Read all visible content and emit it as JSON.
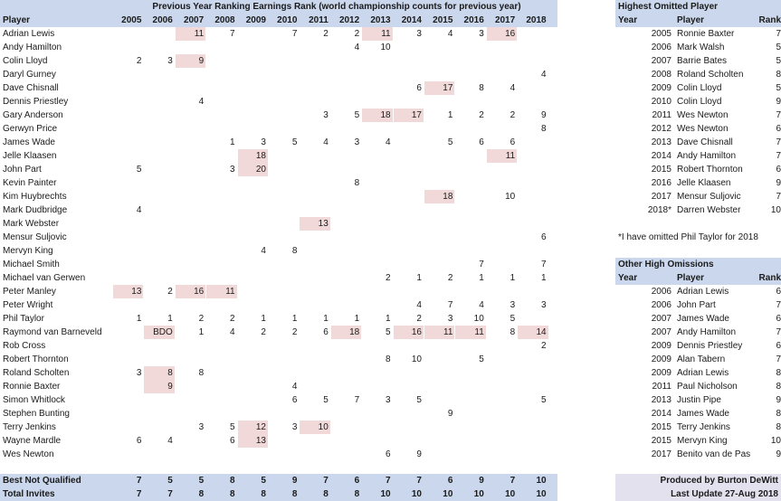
{
  "title": "Previous Year Ranking Earnings Rank (world championship counts for previous year)",
  "player_header": "Player",
  "years": [
    "2005",
    "2006",
    "2007",
    "2008",
    "2009",
    "2010",
    "2011",
    "2012",
    "2013",
    "2014",
    "2015",
    "2016",
    "2017",
    "2018"
  ],
  "players": [
    {
      "name": "Adrian Lewis",
      "ranks": [
        "",
        "",
        "11",
        "7",
        "",
        "7",
        "2",
        "2",
        "11",
        "3",
        "4",
        "3",
        "16",
        ""
      ],
      "highlight": [
        2,
        8,
        12
      ]
    },
    {
      "name": "Andy Hamilton",
      "ranks": [
        "",
        "",
        "",
        "",
        "",
        "",
        "",
        "4",
        "10",
        "",
        "",
        "",
        "",
        ""
      ],
      "highlight": []
    },
    {
      "name": "Colin Lloyd",
      "ranks": [
        "2",
        "3",
        "9",
        "",
        "",
        "",
        "",
        "",
        "",
        "",
        "",
        "",
        "",
        ""
      ],
      "highlight": [
        2
      ]
    },
    {
      "name": "Daryl Gurney",
      "ranks": [
        "",
        "",
        "",
        "",
        "",
        "",
        "",
        "",
        "",
        "",
        "",
        "",
        "",
        "4"
      ],
      "highlight": []
    },
    {
      "name": "Dave Chisnall",
      "ranks": [
        "",
        "",
        "",
        "",
        "",
        "",
        "",
        "",
        "",
        "6",
        "17",
        "8",
        "4",
        ""
      ],
      "highlight": [
        10
      ]
    },
    {
      "name": "Dennis Priestley",
      "ranks": [
        "",
        "",
        "4",
        "",
        "",
        "",
        "",
        "",
        "",
        "",
        "",
        "",
        "",
        ""
      ],
      "highlight": []
    },
    {
      "name": "Gary Anderson",
      "ranks": [
        "",
        "",
        "",
        "",
        "",
        "",
        "3",
        "5",
        "18",
        "17",
        "1",
        "2",
        "2",
        "9"
      ],
      "highlight": [
        8,
        9
      ]
    },
    {
      "name": "Gerwyn Price",
      "ranks": [
        "",
        "",
        "",
        "",
        "",
        "",
        "",
        "",
        "",
        "",
        "",
        "",
        "",
        "8"
      ],
      "highlight": []
    },
    {
      "name": "James Wade",
      "ranks": [
        "",
        "",
        "",
        "1",
        "3",
        "5",
        "4",
        "3",
        "4",
        "",
        "5",
        "6",
        "6",
        ""
      ],
      "highlight": []
    },
    {
      "name": "Jelle Klaasen",
      "ranks": [
        "",
        "",
        "",
        "",
        "18",
        "",
        "",
        "",
        "",
        "",
        "",
        "",
        "11",
        ""
      ],
      "highlight": [
        4,
        12
      ]
    },
    {
      "name": "John Part",
      "ranks": [
        "5",
        "",
        "",
        "3",
        "20",
        "",
        "",
        "",
        "",
        "",
        "",
        "",
        "",
        ""
      ],
      "highlight": [
        4
      ]
    },
    {
      "name": "Kevin Painter",
      "ranks": [
        "",
        "",
        "",
        "",
        "",
        "",
        "",
        "8",
        "",
        "",
        "",
        "",
        "",
        ""
      ],
      "highlight": []
    },
    {
      "name": "Kim Huybrechts",
      "ranks": [
        "",
        "",
        "",
        "",
        "",
        "",
        "",
        "",
        "",
        "",
        "18",
        "",
        "10",
        ""
      ],
      "highlight": [
        10
      ]
    },
    {
      "name": "Mark Dudbridge",
      "ranks": [
        "4",
        "",
        "",
        "",
        "",
        "",
        "",
        "",
        "",
        "",
        "",
        "",
        "",
        ""
      ],
      "highlight": []
    },
    {
      "name": "Mark Webster",
      "ranks": [
        "",
        "",
        "",
        "",
        "",
        "",
        "13",
        "",
        "",
        "",
        "",
        "",
        "",
        ""
      ],
      "highlight": [
        6
      ]
    },
    {
      "name": "Mensur Suljovic",
      "ranks": [
        "",
        "",
        "",
        "",
        "",
        "",
        "",
        "",
        "",
        "",
        "",
        "",
        "",
        "6"
      ],
      "highlight": []
    },
    {
      "name": "Mervyn King",
      "ranks": [
        "",
        "",
        "",
        "",
        "4",
        "8",
        "",
        "",
        "",
        "",
        "",
        "",
        "",
        ""
      ],
      "highlight": []
    },
    {
      "name": "Michael Smith",
      "ranks": [
        "",
        "",
        "",
        "",
        "",
        "",
        "",
        "",
        "",
        "",
        "",
        "7",
        "",
        "7"
      ],
      "highlight": []
    },
    {
      "name": "Michael van Gerwen",
      "ranks": [
        "",
        "",
        "",
        "",
        "",
        "",
        "",
        "",
        "2",
        "1",
        "2",
        "1",
        "1",
        "1"
      ],
      "highlight": []
    },
    {
      "name": "Peter Manley",
      "ranks": [
        "13",
        "2",
        "16",
        "11",
        "",
        "",
        "",
        "",
        "",
        "",
        "",
        "",
        "",
        ""
      ],
      "highlight": [
        0,
        2,
        3
      ]
    },
    {
      "name": "Peter Wright",
      "ranks": [
        "",
        "",
        "",
        "",
        "",
        "",
        "",
        "",
        "",
        "4",
        "7",
        "4",
        "3",
        "3"
      ],
      "highlight": []
    },
    {
      "name": "Phil Taylor",
      "ranks": [
        "1",
        "1",
        "2",
        "2",
        "1",
        "1",
        "1",
        "1",
        "1",
        "2",
        "3",
        "10",
        "5",
        ""
      ],
      "highlight": []
    },
    {
      "name": "Raymond van Barneveld",
      "ranks": [
        "",
        "BDO",
        "1",
        "4",
        "2",
        "2",
        "6",
        "18",
        "5",
        "16",
        "11",
        "11",
        "8",
        "14"
      ],
      "highlight": [
        1,
        7,
        9,
        10,
        11,
        13
      ]
    },
    {
      "name": "Rob Cross",
      "ranks": [
        "",
        "",
        "",
        "",
        "",
        "",
        "",
        "",
        "",
        "",
        "",
        "",
        "",
        "2"
      ],
      "highlight": []
    },
    {
      "name": "Robert Thornton",
      "ranks": [
        "",
        "",
        "",
        "",
        "",
        "",
        "",
        "",
        "8",
        "10",
        "",
        "5",
        "",
        ""
      ],
      "highlight": []
    },
    {
      "name": "Roland Scholten",
      "ranks": [
        "3",
        "8",
        "8",
        "",
        "",
        "",
        "",
        "",
        "",
        "",
        "",
        "",
        "",
        ""
      ],
      "highlight": [
        1
      ]
    },
    {
      "name": "Ronnie Baxter",
      "ranks": [
        "",
        "9",
        "",
        "",
        "",
        "4",
        "",
        "",
        "",
        "",
        "",
        "",
        "",
        ""
      ],
      "highlight": [
        1
      ]
    },
    {
      "name": "Simon Whitlock",
      "ranks": [
        "",
        "",
        "",
        "",
        "",
        "6",
        "5",
        "7",
        "3",
        "5",
        "",
        "",
        "",
        "5"
      ],
      "highlight": []
    },
    {
      "name": "Stephen Bunting",
      "ranks": [
        "",
        "",
        "",
        "",
        "",
        "",
        "",
        "",
        "",
        "",
        "9",
        "",
        "",
        ""
      ],
      "highlight": []
    },
    {
      "name": "Terry Jenkins",
      "ranks": [
        "",
        "",
        "3",
        "5",
        "12",
        "3",
        "10",
        "",
        "",
        "",
        "",
        "",
        "",
        ""
      ],
      "highlight": [
        4,
        6
      ]
    },
    {
      "name": "Wayne Mardle",
      "ranks": [
        "6",
        "4",
        "",
        "6",
        "13",
        "",
        "",
        "",
        "",
        "",
        "",
        "",
        "",
        ""
      ],
      "highlight": [
        4
      ]
    },
    {
      "name": "Wes Newton",
      "ranks": [
        "",
        "",
        "",
        "",
        "",
        "",
        "",
        "",
        "6",
        "9",
        "",
        "",
        "",
        ""
      ],
      "highlight": []
    }
  ],
  "footer_rows": [
    {
      "label": "Best Not Qualified",
      "values": [
        "7",
        "5",
        "5",
        "8",
        "5",
        "9",
        "7",
        "6",
        "7",
        "7",
        "6",
        "9",
        "7",
        "10"
      ]
    },
    {
      "label": "Total Invites",
      "values": [
        "7",
        "7",
        "8",
        "8",
        "8",
        "8",
        "8",
        "8",
        "10",
        "10",
        "10",
        "10",
        "10",
        "10"
      ]
    }
  ],
  "highest_omitted": {
    "title": "Highest Omitted Player",
    "headers": {
      "year": "Year",
      "player": "Player",
      "rank": "Rank"
    },
    "rows": [
      {
        "year": "2005",
        "player": "Ronnie Baxter",
        "rank": "7"
      },
      {
        "year": "2006",
        "player": "Mark Walsh",
        "rank": "5"
      },
      {
        "year": "2007",
        "player": "Barrie Bates",
        "rank": "5"
      },
      {
        "year": "2008",
        "player": "Roland Scholten",
        "rank": "8"
      },
      {
        "year": "2009",
        "player": "Colin Lloyd",
        "rank": "5"
      },
      {
        "year": "2010",
        "player": "Colin Lloyd",
        "rank": "9"
      },
      {
        "year": "2011",
        "player": "Wes Newton",
        "rank": "7"
      },
      {
        "year": "2012",
        "player": "Wes Newton",
        "rank": "6"
      },
      {
        "year": "2013",
        "player": "Dave Chisnall",
        "rank": "7"
      },
      {
        "year": "2014",
        "player": "Andy Hamilton",
        "rank": "7"
      },
      {
        "year": "2015",
        "player": "Robert Thornton",
        "rank": "6"
      },
      {
        "year": "2016",
        "player": "Jelle Klaasen",
        "rank": "9"
      },
      {
        "year": "2017",
        "player": "Mensur Suljovic",
        "rank": "7"
      },
      {
        "year": "2018*",
        "player": "Darren Webster",
        "rank": "10"
      }
    ],
    "note": "*I have omitted Phil Taylor for 2018"
  },
  "other_high_omissions": {
    "title": "Other High Omissions",
    "headers": {
      "year": "Year",
      "player": "Player",
      "rank": "Rank"
    },
    "rows": [
      {
        "year": "2006",
        "player": "Adrian Lewis",
        "rank": "6"
      },
      {
        "year": "2006",
        "player": "John Part",
        "rank": "7"
      },
      {
        "year": "2007",
        "player": "James Wade",
        "rank": "6"
      },
      {
        "year": "2007",
        "player": "Andy Hamilton",
        "rank": "7"
      },
      {
        "year": "2009",
        "player": "Dennis Priestley",
        "rank": "6"
      },
      {
        "year": "2009",
        "player": "Alan Tabern",
        "rank": "7"
      },
      {
        "year": "2009",
        "player": "Adrian Lewis",
        "rank": "8"
      },
      {
        "year": "2011",
        "player": "Paul Nicholson",
        "rank": "8"
      },
      {
        "year": "2013",
        "player": "Justin Pipe",
        "rank": "9"
      },
      {
        "year": "2014",
        "player": "James Wade",
        "rank": "8"
      },
      {
        "year": "2015",
        "player": "Terry Jenkins",
        "rank": "8"
      },
      {
        "year": "2015",
        "player": "Mervyn King",
        "rank": "10"
      },
      {
        "year": "2017",
        "player": "Benito van de Pas",
        "rank": "9"
      }
    ]
  },
  "credits": {
    "produced_by": "Produced by Burton DeWitt",
    "last_update": "Last Update 27-Aug 2018"
  },
  "colors": {
    "header_band": "#cad7ec",
    "highlight": "#f2d9d9",
    "credit_band": "#e4e1ee"
  }
}
